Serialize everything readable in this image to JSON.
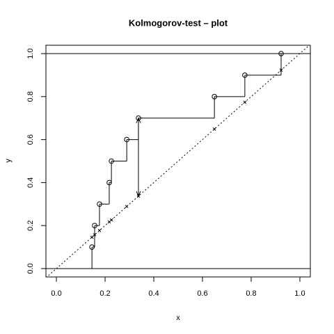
{
  "chart_data": {
    "type": "step",
    "title": "Kolmogorov-test – plot",
    "x_label": "x",
    "y_label": "y",
    "x": [
      0.146,
      0.157,
      0.177,
      0.217,
      0.226,
      0.289,
      0.337,
      0.649,
      0.774,
      0.923
    ],
    "y": [
      0.1,
      0.2,
      0.3,
      0.4,
      0.5,
      0.6,
      0.7,
      0.8,
      0.9,
      1.0
    ],
    "hlines": [
      0,
      1
    ],
    "xlim": [
      -0.043,
      1.043
    ],
    "ylim": [
      -0.039,
      1.039
    ],
    "xticks": [
      {
        "value": 0,
        "label": "0.0"
      },
      0.2,
      0.4,
      0.6,
      0.8,
      {
        "value": 1,
        "label": "1.0"
      }
    ],
    "yticks": [
      {
        "value": 0,
        "label": "0.0"
      },
      0.2,
      0.4,
      0.6,
      0.8,
      {
        "value": 1,
        "label": "1.0"
      }
    ],
    "color": "#000000"
  }
}
